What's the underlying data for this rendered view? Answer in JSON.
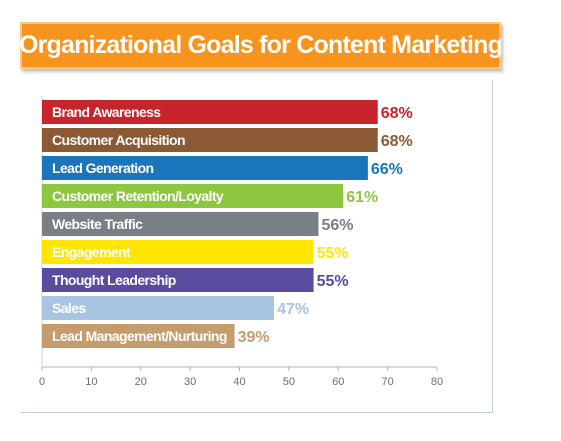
{
  "chart_data": {
    "type": "bar",
    "orientation": "horizontal",
    "title": "Organizational Goals for Content Marketing",
    "categories": [
      "Brand Awareness",
      "Customer Acquisition",
      "Lead Generation",
      "Customer Retention/Loyalty",
      "Website Traffic",
      "Engagement",
      "Thought Leadership",
      "Sales",
      "Lead Management/Nurturing"
    ],
    "values": [
      68,
      68,
      66,
      61,
      56,
      55,
      55,
      47,
      39
    ],
    "value_labels": [
      "68%",
      "68%",
      "66%",
      "61%",
      "56%",
      "55%",
      "55%",
      "47%",
      "39%"
    ],
    "colors": [
      "#c8242b",
      "#8b5a34",
      "#1a75bb",
      "#8dc63f",
      "#7a7f86",
      "#ffe600",
      "#5a4aa0",
      "#a7c4e3",
      "#c69c6d"
    ],
    "label_colors": [
      "#ffffff",
      "#ffffff",
      "#ffffff",
      "#ffffff",
      "#ffffff",
      "#f7c21b",
      "#ffffff",
      "#ffffff",
      "#ffffff"
    ],
    "xlim": [
      0,
      80
    ],
    "xticks": [
      "0",
      "10",
      "20",
      "30",
      "40",
      "50",
      "60",
      "70",
      "80"
    ],
    "grid": false,
    "xlabel": "",
    "ylabel": ""
  }
}
